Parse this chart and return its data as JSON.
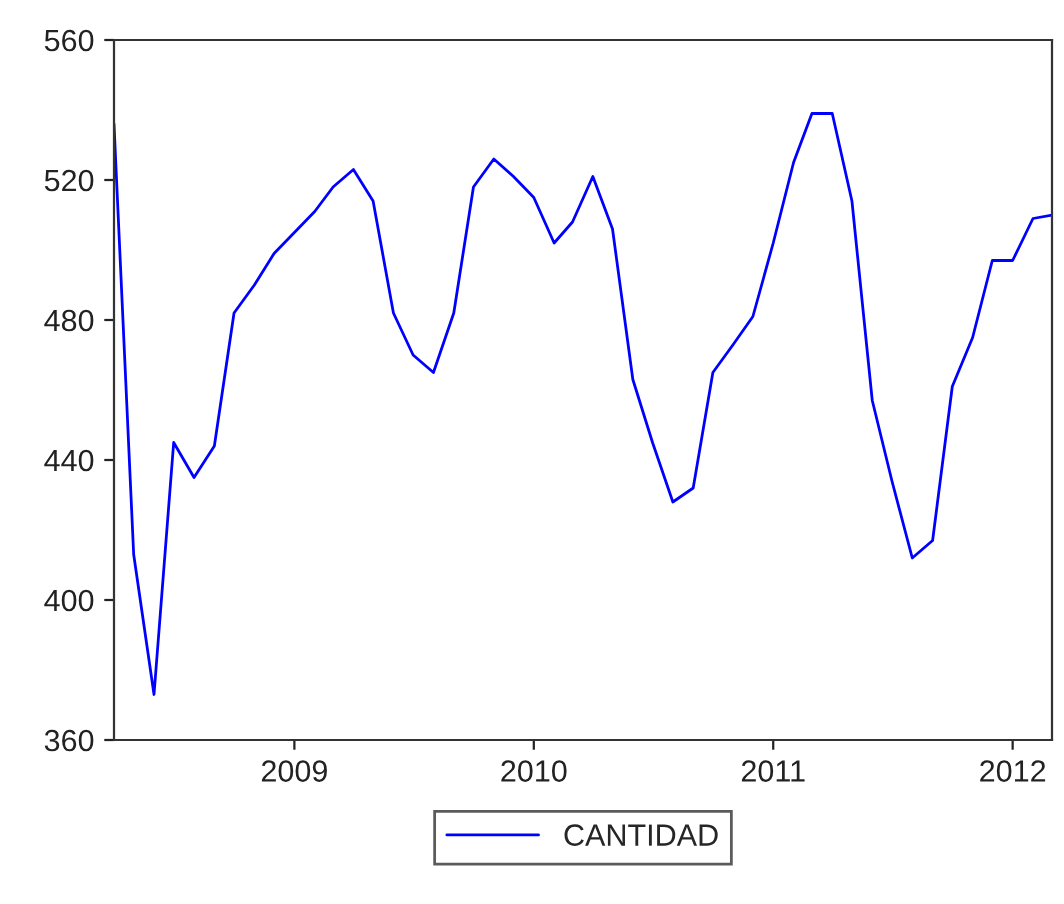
{
  "chart_data": {
    "type": "line",
    "x": [
      "2008-04",
      "2008-05",
      "2008-06",
      "2008-07",
      "2008-08",
      "2008-09",
      "2008-10",
      "2008-11",
      "2008-12",
      "2009-01",
      "2009-02",
      "2009-03",
      "2009-04",
      "2009-05",
      "2009-06",
      "2009-07",
      "2009-08",
      "2009-09",
      "2009-10",
      "2009-11",
      "2009-12",
      "2010-01",
      "2010-02",
      "2010-03",
      "2010-04",
      "2010-05",
      "2010-06",
      "2010-07",
      "2010-08",
      "2010-09",
      "2010-10",
      "2010-11",
      "2010-12",
      "2011-01",
      "2011-02",
      "2011-03",
      "2011-04",
      "2011-05",
      "2011-06",
      "2011-07",
      "2011-08",
      "2011-09",
      "2011-10",
      "2011-11",
      "2011-12",
      "2012-01",
      "2012-02",
      "2012-03"
    ],
    "series": [
      {
        "name": "CANTIDAD",
        "color": "#0000ff",
        "values": [
          536,
          413,
          373,
          445,
          435,
          444,
          482,
          490,
          499,
          505,
          511,
          518,
          523,
          514,
          482,
          470,
          465,
          482,
          518,
          526,
          521,
          515,
          502,
          508,
          521,
          506,
          463,
          445,
          428,
          432,
          465,
          473,
          481,
          502,
          525,
          539,
          539,
          514,
          457,
          434,
          412,
          417,
          461,
          475,
          497,
          497,
          509,
          510
        ]
      }
    ],
    "xlim": [
      "2008-04",
      "2012-03"
    ],
    "xticks": [
      {
        "value": "2009-01",
        "label": "2009"
      },
      {
        "value": "2010-01",
        "label": "2010"
      },
      {
        "value": "2011-01",
        "label": "2011"
      },
      {
        "value": "2012-01",
        "label": "2012"
      }
    ],
    "ylim": [
      360,
      560
    ],
    "yticks": [
      360,
      400,
      440,
      480,
      520,
      560
    ],
    "grid": false,
    "legend": "bottom",
    "line_style": "solid"
  }
}
